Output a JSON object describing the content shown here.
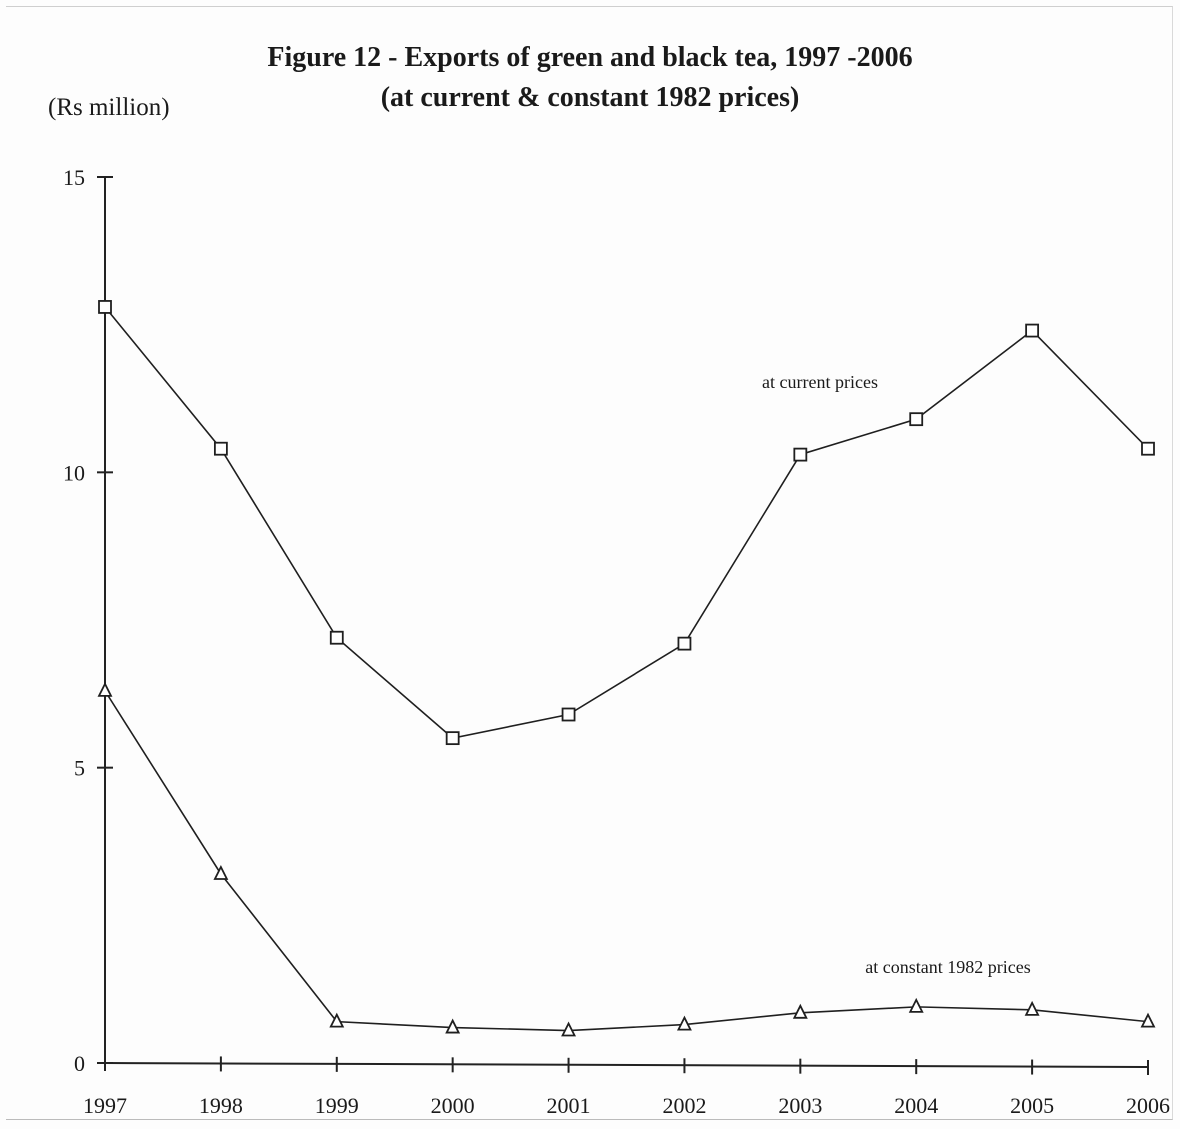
{
  "chart_data": {
    "type": "line",
    "title": "Figure 12 - Exports of green and  black tea, 1997 -2006",
    "subtitle": "(at current & constant 1982 prices)",
    "ylabel": "(Rs million)",
    "xlabel": "",
    "x": [
      "1997",
      "1998",
      "1999",
      "2000",
      "2001",
      "2002",
      "2003",
      "2004",
      "2005",
      "2006"
    ],
    "ylim": [
      0,
      15
    ],
    "yticks": [
      "0",
      "5",
      "10",
      "15"
    ],
    "grid": false,
    "legend": "none",
    "series": [
      {
        "name": "at current prices",
        "marker": "square",
        "values": [
          12.8,
          10.4,
          7.2,
          5.5,
          5.9,
          7.1,
          10.3,
          10.9,
          12.4,
          10.4
        ]
      },
      {
        "name": "at constant 1982 prices",
        "marker": "triangle",
        "values": [
          6.3,
          3.2,
          0.7,
          0.6,
          0.55,
          0.65,
          0.85,
          0.95,
          0.9,
          0.7
        ]
      }
    ]
  }
}
